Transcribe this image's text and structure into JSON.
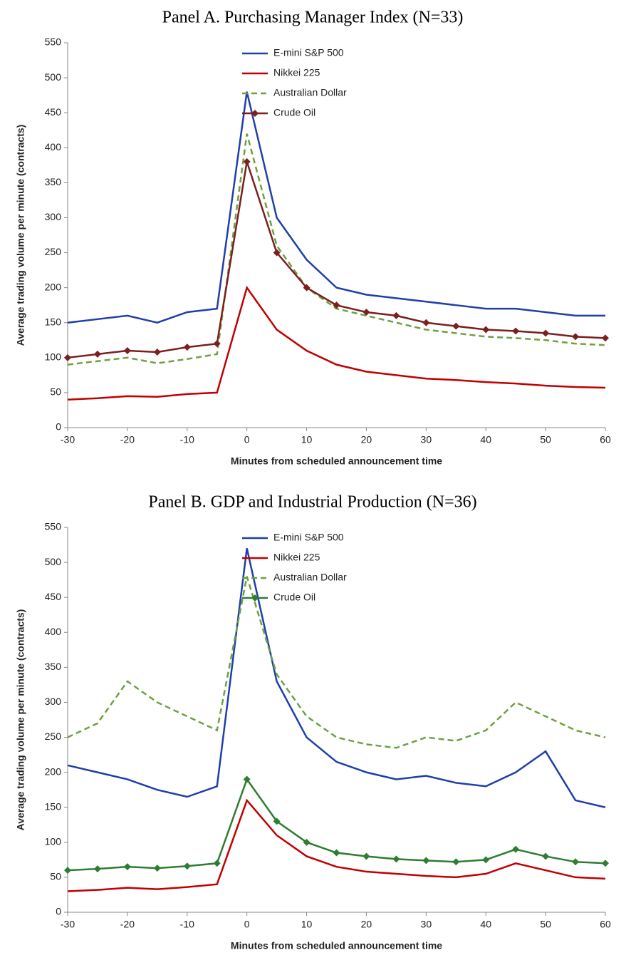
{
  "chart_data": [
    {
      "type": "line",
      "title": "Panel A. Purchasing Manager Index (N=33)",
      "xlabel": "Minutes from scheduled announcement time",
      "ylabel": "Average trading volume per minute (contracts)",
      "x": [
        -30,
        -25,
        -20,
        -15,
        -10,
        -5,
        0,
        5,
        10,
        15,
        20,
        25,
        30,
        35,
        40,
        45,
        50,
        55,
        60
      ],
      "xlim": [
        -30,
        60
      ],
      "xticks": [
        -30,
        -20,
        -10,
        0,
        10,
        20,
        30,
        40,
        50,
        60
      ],
      "ylim": [
        0,
        550
      ],
      "yticks": [
        0,
        50,
        100,
        150,
        200,
        250,
        300,
        350,
        400,
        450,
        500,
        550
      ],
      "legend": "upper-center",
      "series": [
        {
          "name": "E-mini S&P 500",
          "color": "#1f3faa",
          "dash": false,
          "marker": "none",
          "values": [
            150,
            155,
            160,
            150,
            165,
            170,
            480,
            300,
            240,
            200,
            190,
            185,
            180,
            175,
            170,
            170,
            165,
            160,
            160
          ]
        },
        {
          "name": "Nikkei 225",
          "color": "#c00000",
          "dash": false,
          "marker": "none",
          "values": [
            40,
            42,
            45,
            44,
            48,
            50,
            200,
            140,
            110,
            90,
            80,
            75,
            70,
            68,
            65,
            63,
            60,
            58,
            57
          ]
        },
        {
          "name": "Australian Dollar",
          "color": "#6ea040",
          "dash": true,
          "marker": "none",
          "values": [
            90,
            95,
            100,
            92,
            98,
            105,
            420,
            260,
            200,
            170,
            160,
            150,
            140,
            135,
            130,
            128,
            125,
            120,
            118
          ]
        },
        {
          "name": "Crude Oil",
          "color": "#7b1f1f",
          "dash": false,
          "marker": "diamond",
          "values": [
            100,
            105,
            110,
            108,
            115,
            120,
            380,
            250,
            200,
            175,
            165,
            160,
            150,
            145,
            140,
            138,
            135,
            130,
            128
          ]
        }
      ]
    },
    {
      "type": "line",
      "title": "Panel B. GDP and Industrial Production (N=36)",
      "xlabel": "Minutes from scheduled announcement time",
      "ylabel": "Average trading volume per minute (contracts)",
      "x": [
        -30,
        -25,
        -20,
        -15,
        -10,
        -5,
        0,
        5,
        10,
        15,
        20,
        25,
        30,
        35,
        40,
        45,
        50,
        55,
        60
      ],
      "xlim": [
        -30,
        60
      ],
      "xticks": [
        -30,
        -20,
        -10,
        0,
        10,
        20,
        30,
        40,
        50,
        60
      ],
      "ylim": [
        0,
        550
      ],
      "yticks": [
        0,
        50,
        100,
        150,
        200,
        250,
        300,
        350,
        400,
        450,
        500,
        550
      ],
      "legend": "upper-center",
      "series": [
        {
          "name": "E-mini S&P 500",
          "color": "#1f3faa",
          "dash": false,
          "marker": "none",
          "values": [
            210,
            200,
            190,
            175,
            165,
            180,
            520,
            330,
            250,
            215,
            200,
            190,
            195,
            185,
            180,
            200,
            230,
            160,
            150
          ]
        },
        {
          "name": "Nikkei 225",
          "color": "#c00000",
          "dash": false,
          "marker": "none",
          "values": [
            30,
            32,
            35,
            33,
            36,
            40,
            160,
            110,
            80,
            65,
            58,
            55,
            52,
            50,
            55,
            70,
            60,
            50,
            48
          ]
        },
        {
          "name": "Australian Dollar",
          "color": "#6ea040",
          "dash": true,
          "marker": "none",
          "values": [
            250,
            270,
            330,
            300,
            280,
            260,
            480,
            340,
            280,
            250,
            240,
            235,
            250,
            245,
            260,
            300,
            280,
            260,
            250
          ]
        },
        {
          "name": "Crude Oil",
          "color": "#2e7d32",
          "dash": false,
          "marker": "diamond",
          "values": [
            60,
            62,
            65,
            63,
            66,
            70,
            190,
            130,
            100,
            85,
            80,
            76,
            74,
            72,
            75,
            90,
            80,
            72,
            70
          ]
        }
      ]
    }
  ]
}
